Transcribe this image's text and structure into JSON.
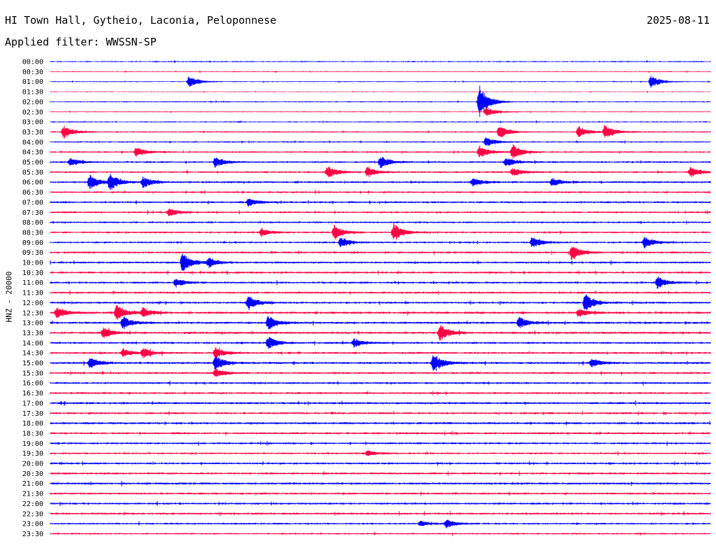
{
  "header": {
    "station": "HI Town Hall, Gytheio, Laconia, Peloponnese",
    "date": "2025-08-11",
    "filter": "Applied filter: WWSSN-SP"
  },
  "channel_label": "HNZ - 20000",
  "chart_data": {
    "type": "line",
    "description_type": "helicorder",
    "title": "HI Town Hall, Gytheio, Laconia, Peloponnese",
    "date": "2025-08-11",
    "filter": "WWSSN-SP",
    "ylabel": "HNZ - 20000",
    "xlabel": "",
    "rows": [
      "00:00",
      "00:30",
      "01:00",
      "01:30",
      "02:00",
      "02:30",
      "03:00",
      "03:30",
      "04:00",
      "04:30",
      "05:00",
      "05:30",
      "06:00",
      "06:30",
      "07:00",
      "07:30",
      "08:00",
      "08:30",
      "09:00",
      "09:30",
      "10:00",
      "10:30",
      "11:00",
      "11:30",
      "12:00",
      "12:30",
      "13:00",
      "13:30",
      "14:00",
      "14:30",
      "15:00",
      "15:30",
      "16:00",
      "16:30",
      "17:00",
      "17:30",
      "18:00",
      "18:30",
      "19:00",
      "19:30",
      "20:00",
      "20:30",
      "21:00",
      "21:30",
      "22:00",
      "22:30",
      "23:00",
      "23:30"
    ],
    "colors": [
      "#0000ff",
      "#ff0044"
    ],
    "row_minutes": 30,
    "noise_level": [
      0.6,
      0.5,
      0.5,
      0.4,
      0.6,
      0.5,
      0.6,
      0.7,
      0.7,
      0.8,
      0.9,
      0.9,
      1.0,
      0.9,
      1.0,
      0.9,
      0.9,
      0.9,
      0.9,
      1.0,
      1.0,
      1.0,
      1.0,
      1.0,
      1.0,
      1.1,
      1.1,
      1.1,
      1.0,
      1.0,
      1.1,
      1.0,
      1.0,
      1.0,
      1.1,
      1.0,
      1.1,
      1.0,
      1.0,
      0.9,
      1.0,
      1.0,
      1.1,
      1.0,
      1.0,
      1.0,
      0.9,
      0.8
    ],
    "events": [
      {
        "row": 2,
        "t": 0.21,
        "amp": 9
      },
      {
        "row": 2,
        "t": 0.91,
        "amp": 9
      },
      {
        "row": 4,
        "t": 0.65,
        "amp": 24
      },
      {
        "row": 5,
        "t": 0.66,
        "amp": 7
      },
      {
        "row": 7,
        "t": 0.02,
        "amp": 10
      },
      {
        "row": 7,
        "t": 0.68,
        "amp": 10
      },
      {
        "row": 7,
        "t": 0.8,
        "amp": 8
      },
      {
        "row": 7,
        "t": 0.84,
        "amp": 11
      },
      {
        "row": 8,
        "t": 0.66,
        "amp": 7
      },
      {
        "row": 9,
        "t": 0.13,
        "amp": 7
      },
      {
        "row": 9,
        "t": 0.65,
        "amp": 9
      },
      {
        "row": 9,
        "t": 0.7,
        "amp": 12
      },
      {
        "row": 10,
        "t": 0.03,
        "amp": 6
      },
      {
        "row": 10,
        "t": 0.25,
        "amp": 8
      },
      {
        "row": 10,
        "t": 0.5,
        "amp": 9
      },
      {
        "row": 10,
        "t": 0.69,
        "amp": 7
      },
      {
        "row": 11,
        "t": 0.42,
        "amp": 9
      },
      {
        "row": 11,
        "t": 0.48,
        "amp": 7
      },
      {
        "row": 11,
        "t": 0.7,
        "amp": 6
      },
      {
        "row": 11,
        "t": 0.97,
        "amp": 8
      },
      {
        "row": 12,
        "t": 0.06,
        "amp": 10
      },
      {
        "row": 12,
        "t": 0.09,
        "amp": 12
      },
      {
        "row": 12,
        "t": 0.14,
        "amp": 8
      },
      {
        "row": 12,
        "t": 0.64,
        "amp": 6
      },
      {
        "row": 12,
        "t": 0.76,
        "amp": 6
      },
      {
        "row": 14,
        "t": 0.3,
        "amp": 6
      },
      {
        "row": 15,
        "t": 0.18,
        "amp": 6
      },
      {
        "row": 17,
        "t": 0.32,
        "amp": 6
      },
      {
        "row": 17,
        "t": 0.43,
        "amp": 10
      },
      {
        "row": 17,
        "t": 0.52,
        "amp": 13
      },
      {
        "row": 18,
        "t": 0.44,
        "amp": 7
      },
      {
        "row": 18,
        "t": 0.73,
        "amp": 8
      },
      {
        "row": 18,
        "t": 0.9,
        "amp": 8
      },
      {
        "row": 19,
        "t": 0.79,
        "amp": 12
      },
      {
        "row": 20,
        "t": 0.2,
        "amp": 14
      },
      {
        "row": 20,
        "t": 0.24,
        "amp": 7
      },
      {
        "row": 22,
        "t": 0.19,
        "amp": 6
      },
      {
        "row": 22,
        "t": 0.92,
        "amp": 9
      },
      {
        "row": 24,
        "t": 0.3,
        "amp": 10
      },
      {
        "row": 24,
        "t": 0.81,
        "amp": 13
      },
      {
        "row": 25,
        "t": 0.01,
        "amp": 8
      },
      {
        "row": 25,
        "t": 0.1,
        "amp": 12
      },
      {
        "row": 25,
        "t": 0.14,
        "amp": 7
      },
      {
        "row": 25,
        "t": 0.8,
        "amp": 6
      },
      {
        "row": 26,
        "t": 0.11,
        "amp": 9
      },
      {
        "row": 26,
        "t": 0.33,
        "amp": 10
      },
      {
        "row": 26,
        "t": 0.71,
        "amp": 8
      },
      {
        "row": 27,
        "t": 0.08,
        "amp": 8
      },
      {
        "row": 27,
        "t": 0.59,
        "amp": 12
      },
      {
        "row": 28,
        "t": 0.33,
        "amp": 9
      },
      {
        "row": 28,
        "t": 0.46,
        "amp": 6
      },
      {
        "row": 29,
        "t": 0.11,
        "amp": 6
      },
      {
        "row": 29,
        "t": 0.14,
        "amp": 7
      },
      {
        "row": 29,
        "t": 0.25,
        "amp": 7
      },
      {
        "row": 30,
        "t": 0.06,
        "amp": 8
      },
      {
        "row": 30,
        "t": 0.25,
        "amp": 10
      },
      {
        "row": 30,
        "t": 0.58,
        "amp": 14
      },
      {
        "row": 30,
        "t": 0.82,
        "amp": 6
      },
      {
        "row": 31,
        "t": 0.25,
        "amp": 6
      },
      {
        "row": 39,
        "t": 0.48,
        "amp": 4
      },
      {
        "row": 46,
        "t": 0.56,
        "amp": 4
      },
      {
        "row": 46,
        "t": 0.6,
        "amp": 6
      }
    ]
  }
}
